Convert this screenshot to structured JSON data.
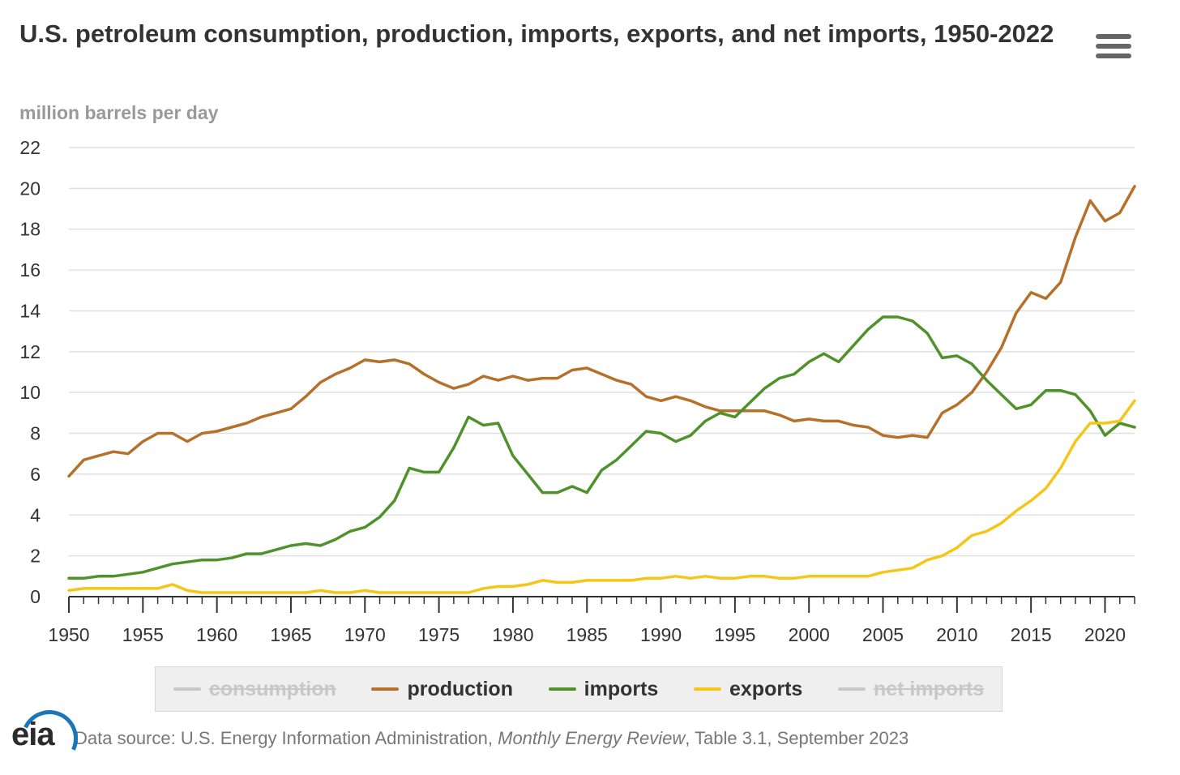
{
  "header": {
    "title": "U.S. petroleum consumption, production, imports, exports, and net imports, 1950-2022",
    "menu_icon": "hamburger-icon"
  },
  "legend": [
    {
      "key": "consumption",
      "label": "consumption",
      "color": "#c8c8c8",
      "hidden": true
    },
    {
      "key": "production",
      "label": "production",
      "color": "#b5702a",
      "hidden": false
    },
    {
      "key": "imports",
      "label": "imports",
      "color": "#4f922c",
      "hidden": false
    },
    {
      "key": "exports",
      "label": "exports",
      "color": "#f5c518",
      "hidden": false
    },
    {
      "key": "net_imports",
      "label": "net imports",
      "color": "#c8c8c8",
      "hidden": true
    }
  ],
  "footer": {
    "logo_text": "eia",
    "source_prefix": "Data source: U.S. Energy Information Administration, ",
    "source_title": "Monthly Energy Review",
    "source_suffix": ", Table 3.1, September 2023"
  },
  "chart_data": {
    "type": "line",
    "title": "U.S. petroleum consumption, production, imports, exports, and net imports, 1950-2022",
    "ylabel": "million barrels per day",
    "xlim": [
      1950,
      2022
    ],
    "ylim": [
      0,
      22
    ],
    "x_ticks": [
      1950,
      1955,
      1960,
      1965,
      1970,
      1975,
      1980,
      1985,
      1990,
      1995,
      2000,
      2005,
      2010,
      2015,
      2020
    ],
    "y_ticks": [
      0,
      2,
      4,
      6,
      8,
      10,
      12,
      14,
      16,
      18,
      20,
      22
    ],
    "grid": true,
    "legend_position": "bottom",
    "x": [
      1950,
      1951,
      1952,
      1953,
      1954,
      1955,
      1956,
      1957,
      1958,
      1959,
      1960,
      1961,
      1962,
      1963,
      1964,
      1965,
      1966,
      1967,
      1968,
      1969,
      1970,
      1971,
      1972,
      1973,
      1974,
      1975,
      1976,
      1977,
      1978,
      1979,
      1980,
      1981,
      1982,
      1983,
      1984,
      1985,
      1986,
      1987,
      1988,
      1989,
      1990,
      1991,
      1992,
      1993,
      1994,
      1995,
      1996,
      1997,
      1998,
      1999,
      2000,
      2001,
      2002,
      2003,
      2004,
      2005,
      2006,
      2007,
      2008,
      2009,
      2010,
      2011,
      2012,
      2013,
      2014,
      2015,
      2016,
      2017,
      2018,
      2019,
      2020,
      2021,
      2022
    ],
    "series": [
      {
        "name": "production",
        "color": "#b5702a",
        "values": [
          5.9,
          6.7,
          6.9,
          7.1,
          7.0,
          7.6,
          8.0,
          8.0,
          7.6,
          8.0,
          8.1,
          8.3,
          8.5,
          8.8,
          9.0,
          9.2,
          9.8,
          10.5,
          10.9,
          11.2,
          11.6,
          11.5,
          11.6,
          11.4,
          10.9,
          10.5,
          10.2,
          10.4,
          10.8,
          10.6,
          10.8,
          10.6,
          10.7,
          10.7,
          11.1,
          11.2,
          10.9,
          10.6,
          10.4,
          9.8,
          9.6,
          9.8,
          9.6,
          9.3,
          9.1,
          9.1,
          9.1,
          9.1,
          8.9,
          8.6,
          8.7,
          8.6,
          8.6,
          8.4,
          8.3,
          7.9,
          7.8,
          7.9,
          7.8,
          9.0,
          9.4,
          10.0,
          11.0,
          12.2,
          13.9,
          14.9,
          14.6,
          15.4,
          17.6,
          19.4,
          18.4,
          18.8,
          20.1
        ]
      },
      {
        "name": "imports",
        "color": "#4f922c",
        "values": [
          0.9,
          0.9,
          1.0,
          1.0,
          1.1,
          1.2,
          1.4,
          1.6,
          1.7,
          1.8,
          1.8,
          1.9,
          2.1,
          2.1,
          2.3,
          2.5,
          2.6,
          2.5,
          2.8,
          3.2,
          3.4,
          3.9,
          4.7,
          6.3,
          6.1,
          6.1,
          7.3,
          8.8,
          8.4,
          8.5,
          6.9,
          6.0,
          5.1,
          5.1,
          5.4,
          5.1,
          6.2,
          6.7,
          7.4,
          8.1,
          8.0,
          7.6,
          7.9,
          8.6,
          9.0,
          8.8,
          9.5,
          10.2,
          10.7,
          10.9,
          11.5,
          11.9,
          11.5,
          12.3,
          13.1,
          13.7,
          13.7,
          13.5,
          12.9,
          11.7,
          11.8,
          11.4,
          10.6,
          9.9,
          9.2,
          9.4,
          10.1,
          10.1,
          9.9,
          9.1,
          7.9,
          8.5,
          8.3
        ]
      },
      {
        "name": "exports",
        "color": "#f5c518",
        "values": [
          0.3,
          0.4,
          0.4,
          0.4,
          0.4,
          0.4,
          0.4,
          0.6,
          0.3,
          0.2,
          0.2,
          0.2,
          0.2,
          0.2,
          0.2,
          0.2,
          0.2,
          0.3,
          0.2,
          0.2,
          0.3,
          0.2,
          0.2,
          0.2,
          0.2,
          0.2,
          0.2,
          0.2,
          0.4,
          0.5,
          0.5,
          0.6,
          0.8,
          0.7,
          0.7,
          0.8,
          0.8,
          0.8,
          0.8,
          0.9,
          0.9,
          1.0,
          0.9,
          1.0,
          0.9,
          0.9,
          1.0,
          1.0,
          0.9,
          0.9,
          1.0,
          1.0,
          1.0,
          1.0,
          1.0,
          1.2,
          1.3,
          1.4,
          1.8,
          2.0,
          2.4,
          3.0,
          3.2,
          3.6,
          4.2,
          4.7,
          5.3,
          6.3,
          7.6,
          8.5,
          8.5,
          8.6,
          9.6
        ]
      }
    ]
  }
}
